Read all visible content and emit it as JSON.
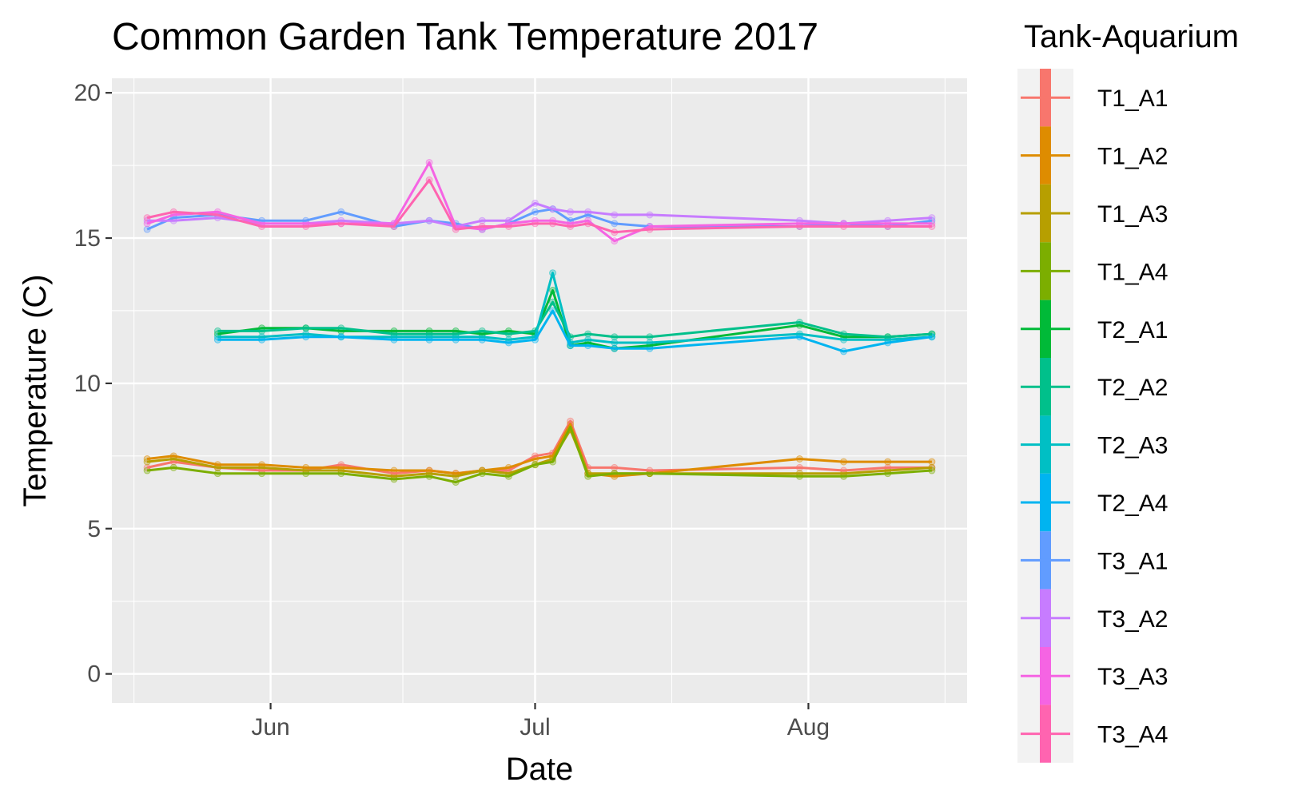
{
  "chart_data": {
    "type": "line",
    "title": "Common Garden Tank Temperature 2017",
    "xlabel": "Date",
    "ylabel": "Temperature (C)",
    "x_ticks": [
      "Jun",
      "Jul",
      "Aug"
    ],
    "y_ticks": [
      "0",
      "5",
      "10",
      "15",
      "20"
    ],
    "ylim": [
      -1,
      20.5
    ],
    "xlim": [
      "2017-05-14",
      "2017-08-19"
    ],
    "grid": true,
    "legend_title": "Tank-Aquarium",
    "legend_position": "right",
    "x": [
      "2017-05-18",
      "2017-05-21",
      "2017-05-26",
      "2017-05-31",
      "2017-06-05",
      "2017-06-09",
      "2017-06-15",
      "2017-06-19",
      "2017-06-22",
      "2017-06-25",
      "2017-06-28",
      "2017-07-01",
      "2017-07-03",
      "2017-07-05",
      "2017-07-07",
      "2017-07-10",
      "2017-07-14",
      "2017-07-31",
      "2017-08-05",
      "2017-08-10",
      "2017-08-15"
    ],
    "series": [
      {
        "name": "T1_A1",
        "color": "#F8766D",
        "values": [
          7.1,
          7.3,
          7.1,
          7.0,
          7.0,
          7.2,
          6.9,
          7.0,
          6.9,
          7.0,
          7.0,
          7.5,
          7.6,
          8.7,
          7.1,
          7.1,
          7.0,
          7.1,
          7.0,
          7.1,
          7.1
        ]
      },
      {
        "name": "T1_A2",
        "color": "#DE8C00",
        "values": [
          7.4,
          7.5,
          7.2,
          7.2,
          7.1,
          7.1,
          7.0,
          7.0,
          6.9,
          7.0,
          7.1,
          7.4,
          7.5,
          8.6,
          6.9,
          6.8,
          6.9,
          7.4,
          7.3,
          7.3,
          7.3
        ]
      },
      {
        "name": "T1_A3",
        "color": "#B79F00",
        "values": [
          7.3,
          7.4,
          7.1,
          7.1,
          7.0,
          7.0,
          6.8,
          6.9,
          6.8,
          7.0,
          6.9,
          7.2,
          7.4,
          8.4,
          6.9,
          6.9,
          6.9,
          6.9,
          6.9,
          7.0,
          7.1
        ]
      },
      {
        "name": "T1_A4",
        "color": "#7CAE00",
        "values": [
          7.0,
          7.1,
          6.9,
          6.9,
          6.9,
          6.9,
          6.7,
          6.8,
          6.6,
          6.9,
          6.8,
          7.2,
          7.3,
          8.5,
          6.8,
          6.9,
          6.9,
          6.8,
          6.8,
          6.9,
          7.0
        ]
      },
      {
        "name": "T2_A1",
        "color": "#00BA38",
        "values": [
          null,
          null,
          11.7,
          11.9,
          11.9,
          11.8,
          11.8,
          11.8,
          11.8,
          11.7,
          11.8,
          11.7,
          13.2,
          11.3,
          11.4,
          11.2,
          11.3,
          12.0,
          11.6,
          11.6,
          11.7
        ]
      },
      {
        "name": "T2_A2",
        "color": "#00C08B",
        "values": [
          null,
          null,
          11.8,
          11.8,
          11.9,
          11.9,
          11.7,
          11.7,
          11.7,
          11.8,
          11.7,
          11.8,
          12.8,
          11.6,
          11.7,
          11.6,
          11.6,
          12.1,
          11.7,
          11.6,
          11.7
        ]
      },
      {
        "name": "T2_A3",
        "color": "#00BFC4",
        "values": [
          null,
          null,
          11.6,
          11.6,
          11.7,
          11.6,
          11.6,
          11.6,
          11.6,
          11.6,
          11.5,
          11.6,
          13.8,
          11.4,
          11.5,
          11.4,
          11.4,
          11.7,
          11.5,
          11.5,
          11.6
        ]
      },
      {
        "name": "T2_A4",
        "color": "#00B4F0",
        "values": [
          null,
          null,
          11.5,
          11.5,
          11.6,
          11.6,
          11.5,
          11.5,
          11.5,
          11.5,
          11.4,
          11.5,
          12.5,
          11.3,
          11.3,
          11.2,
          11.2,
          11.6,
          11.1,
          11.4,
          11.6
        ]
      },
      {
        "name": "T3_A1",
        "color": "#619CFF",
        "values": [
          15.3,
          15.7,
          15.8,
          15.6,
          15.6,
          15.9,
          15.4,
          15.6,
          15.5,
          15.3,
          15.5,
          15.9,
          16.0,
          15.6,
          15.8,
          15.5,
          15.4,
          15.4,
          15.5,
          15.4,
          15.6
        ]
      },
      {
        "name": "T3_A2",
        "color": "#C77CFF",
        "values": [
          15.6,
          15.6,
          15.7,
          15.5,
          15.5,
          15.6,
          15.5,
          15.6,
          15.4,
          15.6,
          15.6,
          16.2,
          16.0,
          15.9,
          15.9,
          15.8,
          15.8,
          15.6,
          15.5,
          15.6,
          15.7
        ]
      },
      {
        "name": "T3_A3",
        "color": "#F564E3",
        "values": [
          15.5,
          15.8,
          15.9,
          15.5,
          15.5,
          15.5,
          15.5,
          17.6,
          15.4,
          15.3,
          15.5,
          15.6,
          15.6,
          15.5,
          15.6,
          14.9,
          15.4,
          15.5,
          15.5,
          15.5,
          15.5
        ]
      },
      {
        "name": "T3_A4",
        "color": "#FF64B0",
        "values": [
          15.7,
          15.9,
          15.8,
          15.4,
          15.4,
          15.5,
          15.4,
          17.0,
          15.3,
          15.4,
          15.4,
          15.5,
          15.5,
          15.4,
          15.5,
          15.2,
          15.3,
          15.4,
          15.4,
          15.4,
          15.4
        ]
      }
    ]
  }
}
